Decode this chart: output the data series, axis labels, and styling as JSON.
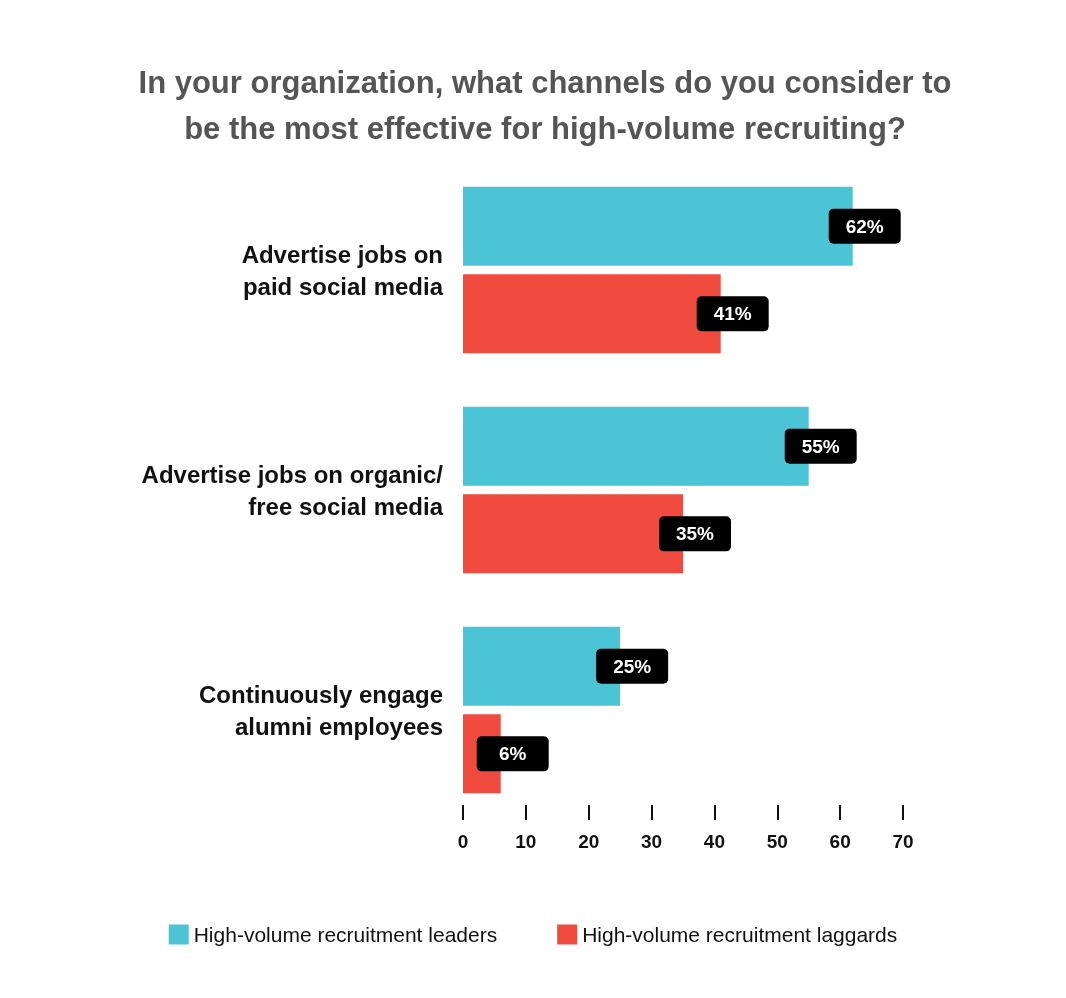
{
  "chart_data": {
    "type": "bar",
    "orientation": "horizontal",
    "title": "In your organization, what channels do you consider to\nbe the most effective for high-volume recruiting?",
    "categories": [
      "Advertise jobs on\npaid social media",
      "Advertise jobs on organic/\nfree social media",
      "Continuously engage\nalumni employees"
    ],
    "series": [
      {
        "name": "High-volume recruitment leaders",
        "color": "#4bc5d6",
        "values": [
          62,
          55,
          25
        ],
        "value_labels": [
          "62%",
          "55%",
          "25%"
        ]
      },
      {
        "name": "High-volume recruitment laggards",
        "color": "#f04b3e",
        "values": [
          41,
          35,
          6
        ],
        "value_labels": [
          "41%",
          "35%",
          "6%"
        ]
      }
    ],
    "xlim": [
      0,
      70
    ],
    "xticks": [
      0,
      10,
      20,
      30,
      40,
      50,
      60,
      70
    ],
    "grid": false,
    "legend": "bottom"
  }
}
